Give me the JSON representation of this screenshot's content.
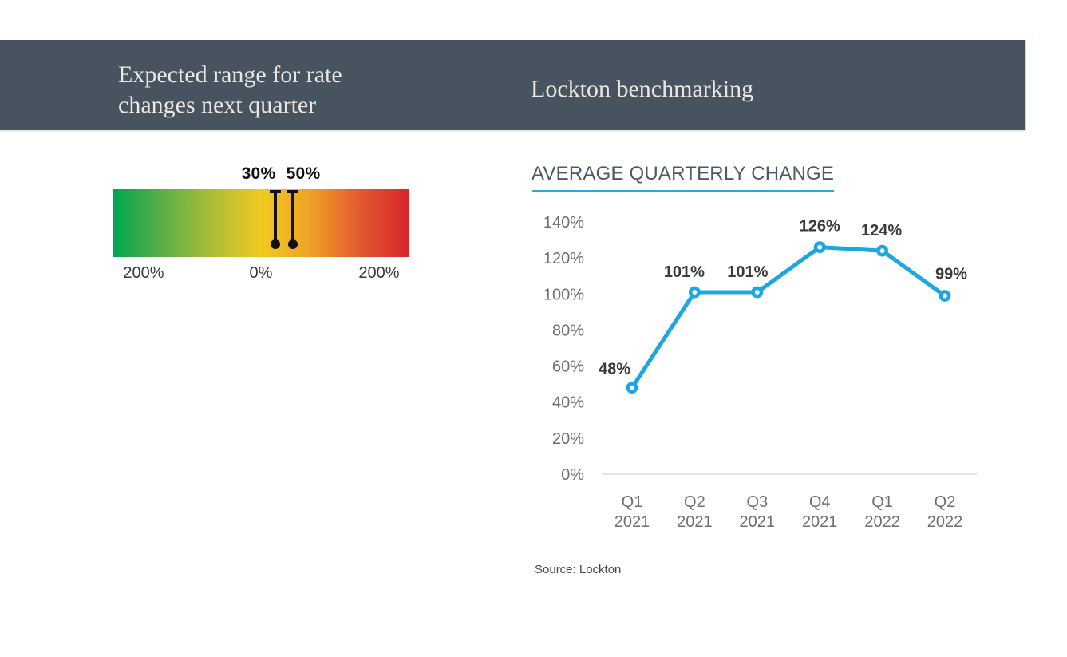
{
  "header": {
    "left_title": "Expected range for rate\nchanges next quarter",
    "right_title": "Lockton benchmarking",
    "bg_color": "#47545F",
    "text_color": "#E8E7E3"
  },
  "gauge": {
    "markers": [
      {
        "label": "30%",
        "value": 30
      },
      {
        "label": "50%",
        "value": 50
      }
    ],
    "axis_labels": [
      "200%",
      "0%",
      "200%"
    ],
    "gradient_colors": [
      "#00A551",
      "#62B045",
      "#AEBE35",
      "#F0CA1F",
      "#EFA426",
      "#E2572F",
      "#D7252E"
    ]
  },
  "benchmarking": {
    "section_title": "AVERAGE QUARTERLY CHANGE",
    "source": "Source: Lockton",
    "accent_color": "#29ABE2"
  },
  "chart_data": {
    "type": "line",
    "title": "AVERAGE QUARTERLY CHANGE",
    "categories": [
      "Q1 2021",
      "Q2 2021",
      "Q3 2021",
      "Q4 2021",
      "Q1 2022",
      "Q2 2022"
    ],
    "values": [
      48,
      101,
      101,
      126,
      124,
      99
    ],
    "data_labels": [
      "48%",
      "101%",
      "101%",
      "126%",
      "124%",
      "99%"
    ],
    "xlabel": "",
    "ylabel": "",
    "ylim": [
      0,
      140
    ],
    "ytick_step": 20,
    "ytick_labels": [
      "0%",
      "20%",
      "40%",
      "60%",
      "80%",
      "100%",
      "120%",
      "140%"
    ],
    "grid": false,
    "legend": "none",
    "line_color": "#1BA7E2",
    "marker_style": "open-circle",
    "axis_line_color": "#D9D9D9",
    "tick_color": "#6F6F6F",
    "data_label_color": "#3B3B3B"
  }
}
